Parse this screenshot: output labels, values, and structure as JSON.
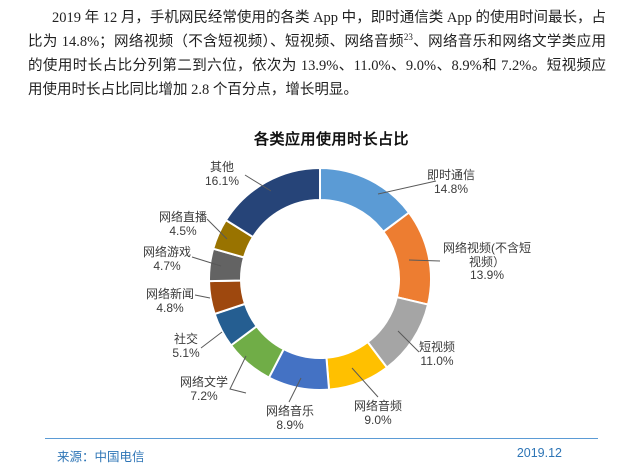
{
  "paragraph": {
    "part1": "2019 年 12 月，手机网民经常使用的各类 App 中，即时通信类 App 的使用时间最长，占比为 14.8%；网络视频（不含短视频）、短视频、网络音频",
    "superscript": "23",
    "part2": "、网络音乐和网络文学类应用的使用时长占比分列第二到六位，依次为 13.9%、11.0%、9.0%、8.9%和 7.2%。短视频应用使用时长占比同比增加 2.8 个百分点，增长明显。"
  },
  "chart_data": {
    "type": "pie",
    "subtype": "donut",
    "title": "各类应用使用时长占比",
    "unit": "percent",
    "start_angle_deg": 0,
    "direction": "clockwise",
    "legend_position": "none",
    "slices": [
      {
        "label": "即时通信",
        "value": 14.8,
        "value_label": "14.8%",
        "label_lines": [
          "即时通信"
        ],
        "color": "#5B9BD5"
      },
      {
        "label": "网络视频(不含短视频）",
        "value": 13.9,
        "value_label": "13.9%",
        "label_lines": [
          "网络视频(不含短",
          "视频）"
        ],
        "color": "#ED7D31"
      },
      {
        "label": "短视频",
        "value": 11.0,
        "value_label": "11.0%",
        "label_lines": [
          "短视频"
        ],
        "color": "#A5A5A5"
      },
      {
        "label": "网络音频",
        "value": 9.0,
        "value_label": "9.0%",
        "label_lines": [
          "网络音频"
        ],
        "color": "#FFC000"
      },
      {
        "label": "网络音乐",
        "value": 8.9,
        "value_label": "8.9%",
        "label_lines": [
          "网络音乐"
        ],
        "color": "#4472C4"
      },
      {
        "label": "网络文学",
        "value": 7.2,
        "value_label": "7.2%",
        "label_lines": [
          "网络文学"
        ],
        "color": "#70AD47"
      },
      {
        "label": "社交",
        "value": 5.1,
        "value_label": "5.1%",
        "label_lines": [
          "社交"
        ],
        "color": "#255E91"
      },
      {
        "label": "网络新闻",
        "value": 4.8,
        "value_label": "4.8%",
        "label_lines": [
          "网络新闻"
        ],
        "color": "#9E480E"
      },
      {
        "label": "网络游戏",
        "value": 4.7,
        "value_label": "4.7%",
        "label_lines": [
          "网络游戏"
        ],
        "color": "#636363"
      },
      {
        "label": "网络直播",
        "value": 4.5,
        "value_label": "4.5%",
        "label_lines": [
          "网络直播"
        ],
        "color": "#997300"
      },
      {
        "label": "其他",
        "value": 16.1,
        "value_label": "16.1%",
        "label_lines": [
          "其他"
        ],
        "color": "#264478"
      }
    ]
  },
  "footer": {
    "source": "来源：中国电信",
    "date": "2019.12",
    "accent_color": "#2E75B6"
  }
}
